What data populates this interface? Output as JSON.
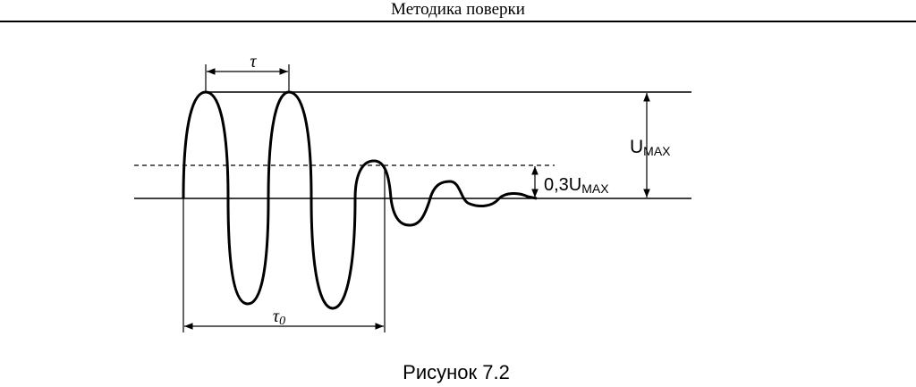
{
  "header": {
    "title": "Методика поверки"
  },
  "figure": {
    "labels": {
      "tau": "τ",
      "tau0": {
        "base": "τ",
        "sub": "0"
      },
      "umax": {
        "base": "U",
        "sub": "MAX"
      },
      "threshold": {
        "base": "0,3U",
        "sub": "MAX"
      }
    },
    "caption": "Рисунок 7.2"
  }
}
